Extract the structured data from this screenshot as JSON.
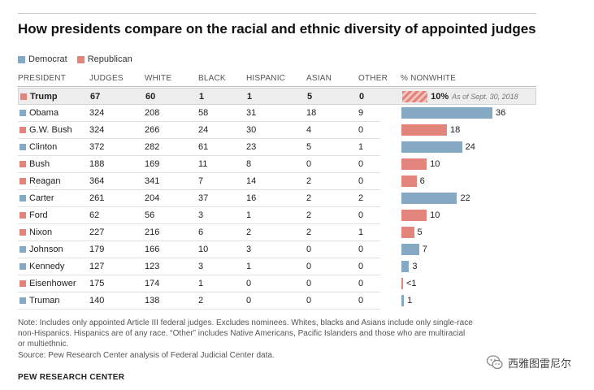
{
  "title": "How presidents compare on the racial and ethnic diversity of appointed judges",
  "legend": {
    "democrat": "Democrat",
    "republican": "Republican"
  },
  "colors": {
    "democrat": "#86a9c3",
    "republican": "#e3847c"
  },
  "columns": [
    "PRESIDENT",
    "JUDGES",
    "WHITE",
    "BLACK",
    "HISPANIC",
    "ASIAN",
    "OTHER",
    "% NONWHITE"
  ],
  "chart_data": {
    "type": "table",
    "title": "How presidents compare on the racial and ethnic diversity of appointed judges",
    "series_legend": [
      "Democrat",
      "Republican"
    ],
    "rows": [
      {
        "president": "Trump",
        "party": "republican",
        "judges": "67",
        "white": "60",
        "black": "1",
        "hispanic": "1",
        "asian": "5",
        "other": "0",
        "nonwhite": 10,
        "nonwhite_label": "10%",
        "note": "As of Sept. 30, 2018",
        "highlight": true
      },
      {
        "president": "Obama",
        "party": "democrat",
        "judges": "324",
        "white": "208",
        "black": "58",
        "hispanic": "31",
        "asian": "18",
        "other": "9",
        "nonwhite": 36,
        "nonwhite_label": "36"
      },
      {
        "president": "G.W. Bush",
        "party": "republican",
        "judges": "324",
        "white": "266",
        "black": "24",
        "hispanic": "30",
        "asian": "4",
        "other": "0",
        "nonwhite": 18,
        "nonwhite_label": "18"
      },
      {
        "president": "Clinton",
        "party": "democrat",
        "judges": "372",
        "white": "282",
        "black": "61",
        "hispanic": "23",
        "asian": "5",
        "other": "1",
        "nonwhite": 24,
        "nonwhite_label": "24"
      },
      {
        "president": "Bush",
        "party": "republican",
        "judges": "188",
        "white": "169",
        "black": "11",
        "hispanic": "8",
        "asian": "0",
        "other": "0",
        "nonwhite": 10,
        "nonwhite_label": "10"
      },
      {
        "president": "Reagan",
        "party": "republican",
        "judges": "364",
        "white": "341",
        "black": "7",
        "hispanic": "14",
        "asian": "2",
        "other": "0",
        "nonwhite": 6,
        "nonwhite_label": "6"
      },
      {
        "president": "Carter",
        "party": "democrat",
        "judges": "261",
        "white": "204",
        "black": "37",
        "hispanic": "16",
        "asian": "2",
        "other": "2",
        "nonwhite": 22,
        "nonwhite_label": "22"
      },
      {
        "president": "Ford",
        "party": "republican",
        "judges": "62",
        "white": "56",
        "black": "3",
        "hispanic": "1",
        "asian": "2",
        "other": "0",
        "nonwhite": 10,
        "nonwhite_label": "10"
      },
      {
        "president": "Nixon",
        "party": "republican",
        "judges": "227",
        "white": "216",
        "black": "6",
        "hispanic": "2",
        "asian": "2",
        "other": "1",
        "nonwhite": 5,
        "nonwhite_label": "5"
      },
      {
        "president": "Johnson",
        "party": "democrat",
        "judges": "179",
        "white": "166",
        "black": "10",
        "hispanic": "3",
        "asian": "0",
        "other": "0",
        "nonwhite": 7,
        "nonwhite_label": "7"
      },
      {
        "president": "Kennedy",
        "party": "democrat",
        "judges": "127",
        "white": "123",
        "black": "3",
        "hispanic": "1",
        "asian": "0",
        "other": "0",
        "nonwhite": 3,
        "nonwhite_label": "3"
      },
      {
        "president": "Eisenhower",
        "party": "republican",
        "judges": "175",
        "white": "174",
        "black": "1",
        "hispanic": "0",
        "asian": "0",
        "other": "0",
        "nonwhite": 0.5,
        "nonwhite_label": "<1"
      },
      {
        "president": "Truman",
        "party": "democrat",
        "judges": "140",
        "white": "138",
        "black": "2",
        "hispanic": "0",
        "asian": "0",
        "other": "0",
        "nonwhite": 1,
        "nonwhite_label": "1"
      }
    ],
    "xlim": [
      0,
      36
    ]
  },
  "notes": {
    "line1": "Note: Includes only appointed Article III federal judges. Excludes nominees. Whites, blacks and Asians include only single-race",
    "line2": "non-Hispanics. Hispanics are of any race. “Other” includes Native Americans, Pacific Islanders and those who are multiracial",
    "line3": "or multiethnic.",
    "source": "Source: Pew Research Center analysis of Federal Judicial Center data."
  },
  "brand": "PEW RESEARCH CENTER",
  "watermark": "西雅图雷尼尔"
}
